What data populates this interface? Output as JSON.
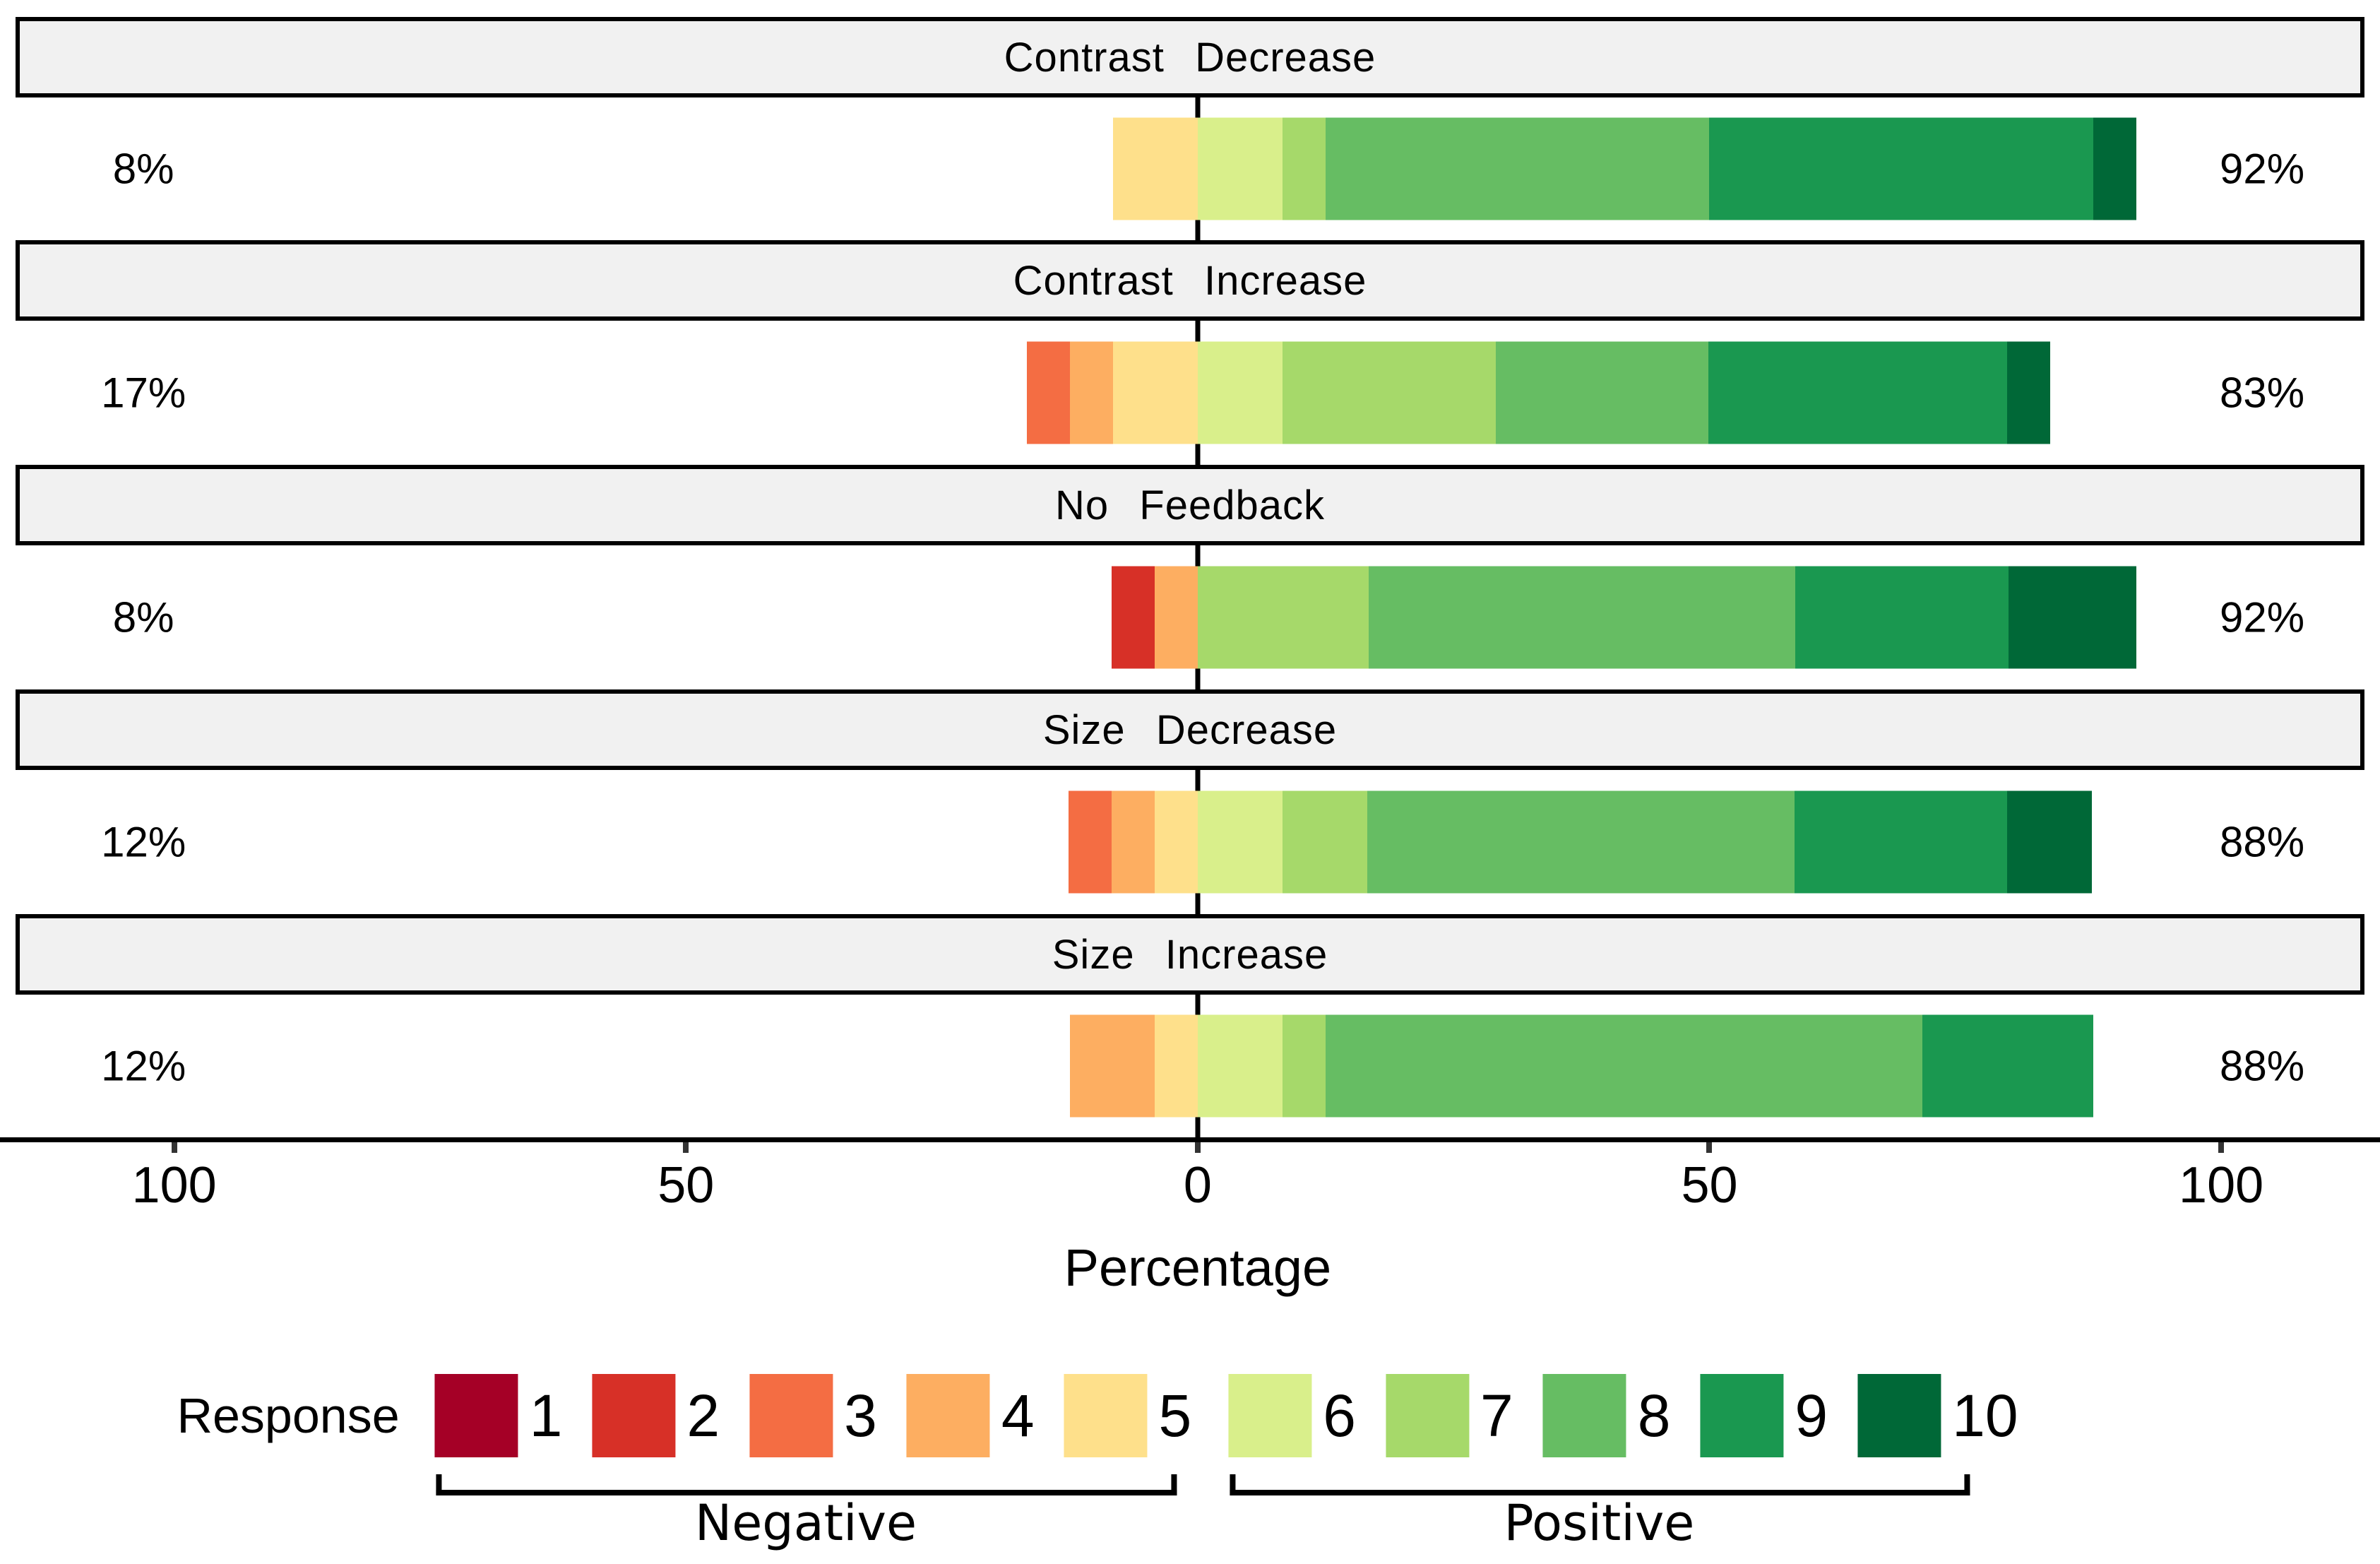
{
  "chart_data": {
    "type": "diverging_stacked_bar",
    "xlabel": "Percentage",
    "x_range": [
      -115.5,
      114
    ],
    "x_ticks": [
      {
        "value": -100,
        "label": "100"
      },
      {
        "value": -50,
        "label": "50"
      },
      {
        "value": 0,
        "label": "0"
      },
      {
        "value": 50,
        "label": "50"
      },
      {
        "value": 100,
        "label": "100"
      }
    ],
    "panels": [
      {
        "label": "Contrast Decrease",
        "negative_total": "8%",
        "positive_total": "92%",
        "segments": [
          {
            "response": 5,
            "pct": 8.3
          },
          {
            "response": 6,
            "pct": 8.3
          },
          {
            "response": 7,
            "pct": 4.2
          },
          {
            "response": 8,
            "pct": 37.5
          },
          {
            "response": 9,
            "pct": 37.5
          },
          {
            "response": 10,
            "pct": 4.2
          }
        ]
      },
      {
        "label": "Contrast Increase",
        "negative_total": "17%",
        "positive_total": "83%",
        "segments": [
          {
            "response": 3,
            "pct": 4.2
          },
          {
            "response": 4,
            "pct": 4.2
          },
          {
            "response": 5,
            "pct": 8.3
          },
          {
            "response": 6,
            "pct": 8.3
          },
          {
            "response": 7,
            "pct": 20.8
          },
          {
            "response": 8,
            "pct": 20.8
          },
          {
            "response": 9,
            "pct": 29.2
          },
          {
            "response": 10,
            "pct": 4.2
          }
        ]
      },
      {
        "label": "No Feedback",
        "negative_total": "8%",
        "positive_total": "92%",
        "segments": [
          {
            "response": 2,
            "pct": 4.2
          },
          {
            "response": 4,
            "pct": 4.2
          },
          {
            "response": 7,
            "pct": 16.7
          },
          {
            "response": 8,
            "pct": 41.7
          },
          {
            "response": 9,
            "pct": 20.8
          },
          {
            "response": 10,
            "pct": 12.5
          }
        ]
      },
      {
        "label": "Size Decrease",
        "negative_total": "12%",
        "positive_total": "88%",
        "segments": [
          {
            "response": 3,
            "pct": 4.2
          },
          {
            "response": 4,
            "pct": 4.2
          },
          {
            "response": 5,
            "pct": 4.2
          },
          {
            "response": 6,
            "pct": 8.3
          },
          {
            "response": 7,
            "pct": 8.3
          },
          {
            "response": 8,
            "pct": 41.7
          },
          {
            "response": 9,
            "pct": 20.8
          },
          {
            "response": 10,
            "pct": 8.3
          }
        ]
      },
      {
        "label": "Size Increase",
        "negative_total": "12%",
        "positive_total": "88%",
        "segments": [
          {
            "response": 4,
            "pct": 8.3
          },
          {
            "response": 5,
            "pct": 4.2
          },
          {
            "response": 6,
            "pct": 8.3
          },
          {
            "response": 7,
            "pct": 4.2
          },
          {
            "response": 8,
            "pct": 58.3
          },
          {
            "response": 9,
            "pct": 16.7
          }
        ]
      }
    ],
    "legend": {
      "title": "Response",
      "entries": [
        {
          "response": 1,
          "color": "#A50026"
        },
        {
          "response": 2,
          "color": "#D73027"
        },
        {
          "response": 3,
          "color": "#F46D43"
        },
        {
          "response": 4,
          "color": "#FDAE61"
        },
        {
          "response": 5,
          "color": "#FEE08B"
        },
        {
          "response": 6,
          "color": "#D9EF8B"
        },
        {
          "response": 7,
          "color": "#A6D96A"
        },
        {
          "response": 8,
          "color": "#66BD63"
        },
        {
          "response": 9,
          "color": "#1A9850"
        },
        {
          "response": 10,
          "color": "#006837"
        }
      ],
      "groups": [
        {
          "label": "Negative",
          "responses": [
            1,
            2,
            3,
            4,
            5
          ]
        },
        {
          "label": "Positive",
          "responses": [
            6,
            7,
            8,
            9,
            10
          ]
        }
      ]
    },
    "colors": {
      "strip_background": "#F1F1F1",
      "axis": "#000000",
      "background": "#FFFFFF"
    }
  }
}
